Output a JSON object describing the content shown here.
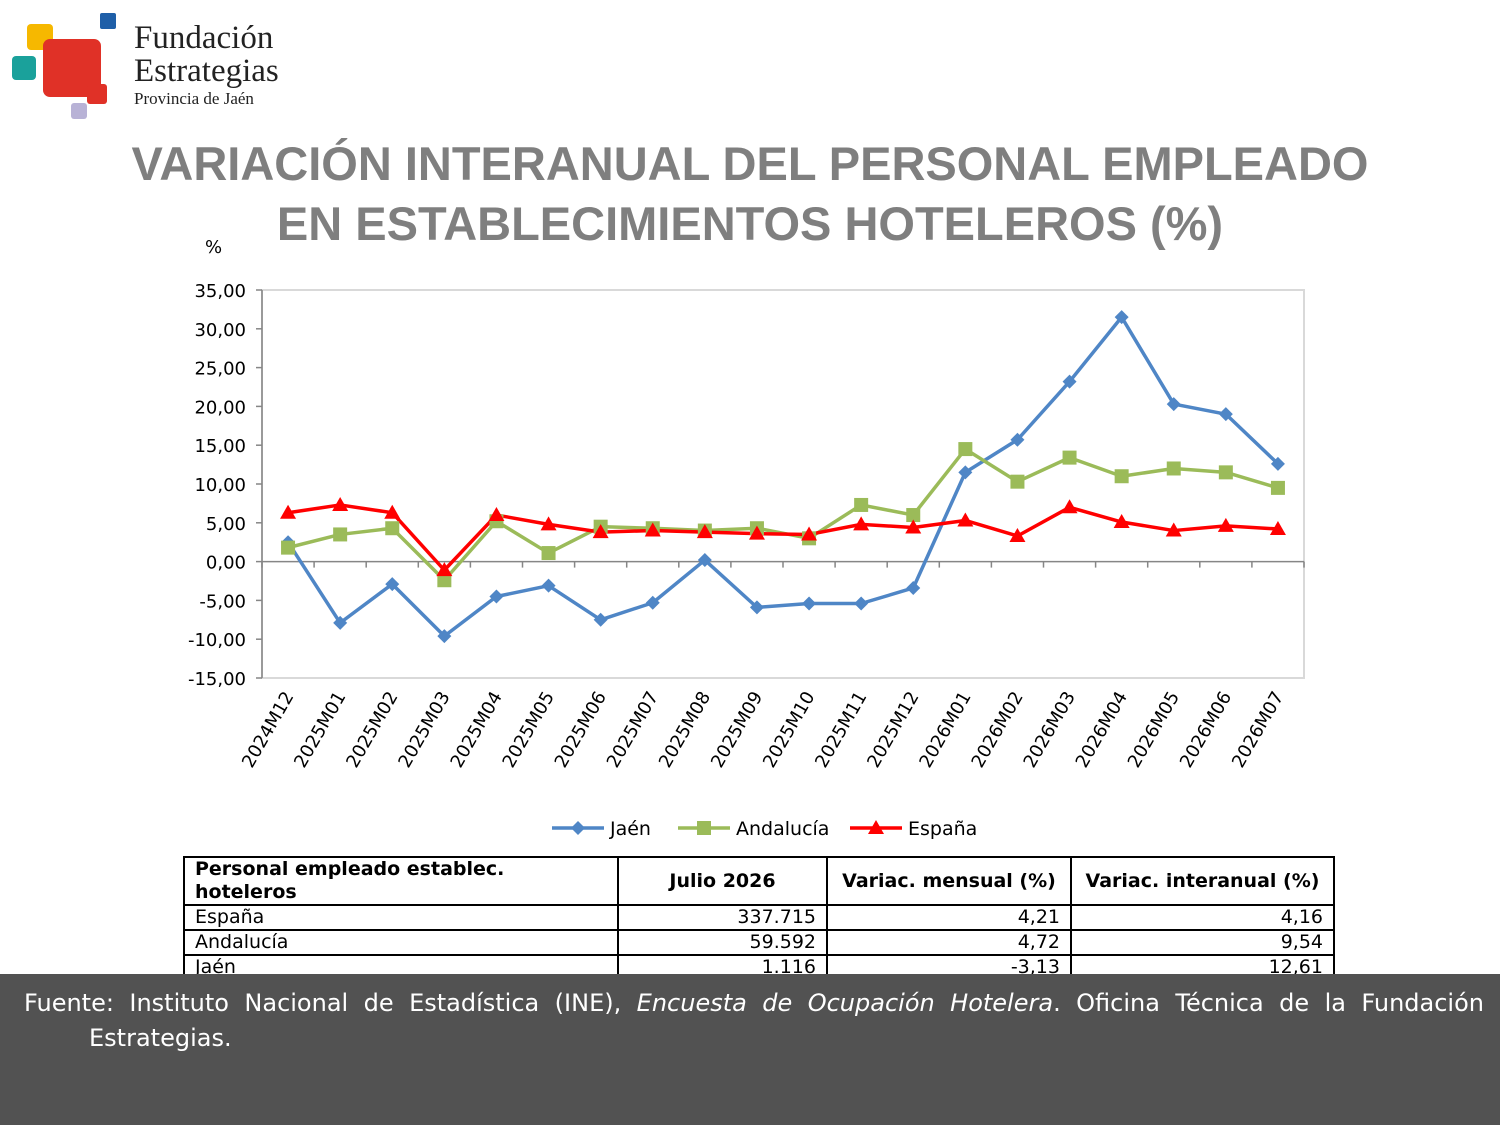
{
  "brand": {
    "name_line1": "Fundación",
    "name_line2": "Estrategias",
    "subtitle": "Provincia de Jaén",
    "colors": [
      "#1f5fa8",
      "#f6b800",
      "#e03127",
      "#1aa19b",
      "#b8b2d6"
    ]
  },
  "title": {
    "line1": "VARIACIÓN INTERANUAL DEL PERSONAL EMPLEADO",
    "line2": "EN ESTABLECIMIENTOS HOTELEROS (%)"
  },
  "chart_data": {
    "type": "line",
    "ylabel": "%",
    "ylim": [
      -15,
      35
    ],
    "ytick_step": 5,
    "yticks": [
      "35,00",
      "30,00",
      "25,00",
      "20,00",
      "15,00",
      "10,00",
      "5,00",
      "0,00",
      "-5,00",
      "-10,00",
      "-15,00"
    ],
    "grid": false,
    "legend_position": "bottom",
    "categories": [
      "2024M12",
      "2025M01",
      "2025M02",
      "2025M03",
      "2025M04",
      "2025M05",
      "2025M06",
      "2025M07",
      "2025M08",
      "2025M09",
      "2025M10",
      "2025M11",
      "2025M12",
      "2026M01",
      "2026M02",
      "2026M03",
      "2026M04",
      "2026M05",
      "2026M06",
      "2026M07"
    ],
    "series": [
      {
        "name": "Jaén",
        "color": "#4f86c6",
        "marker": "diamond",
        "values": [
          2.5,
          -7.9,
          -2.9,
          -9.6,
          -4.5,
          -3.1,
          -7.5,
          -5.3,
          0.2,
          -5.9,
          -5.4,
          -5.4,
          -3.4,
          11.5,
          15.7,
          23.2,
          31.5,
          20.3,
          19.0,
          12.6
        ]
      },
      {
        "name": "Andalucía",
        "color": "#9bbb59",
        "marker": "square",
        "values": [
          1.8,
          3.5,
          4.3,
          -2.4,
          5.2,
          1.1,
          4.5,
          4.3,
          4.0,
          4.3,
          3.0,
          7.3,
          6.0,
          14.5,
          10.3,
          13.4,
          11.0,
          12.0,
          11.5,
          9.5
        ]
      },
      {
        "name": "España",
        "color": "#ff0000",
        "marker": "triangle",
        "values": [
          6.3,
          7.3,
          6.3,
          -1.1,
          6.0,
          4.8,
          3.8,
          4.0,
          3.8,
          3.6,
          3.5,
          4.8,
          4.4,
          5.3,
          3.3,
          7.0,
          5.1,
          4.0,
          4.6,
          4.2
        ]
      }
    ]
  },
  "table": {
    "headers": [
      "Personal empleado establec. hoteleros",
      "Julio 2026",
      "Variac. mensual (%)",
      "Variac. interanual (%)"
    ],
    "rows": [
      [
        "España",
        "337.715",
        "4,21",
        "4,16"
      ],
      [
        "Andalucía",
        "59.592",
        "4,72",
        "9,54"
      ],
      [
        "Jaén",
        "1.116",
        "-3,13",
        "12,61"
      ]
    ]
  },
  "footer": {
    "prefix": "Fuente: Instituto Nacional de Estadística (INE), ",
    "italic": "Encuesta de Ocupación Hotelera",
    "suffix": ". Oficina Técnica de la Fundación Estrategias."
  }
}
